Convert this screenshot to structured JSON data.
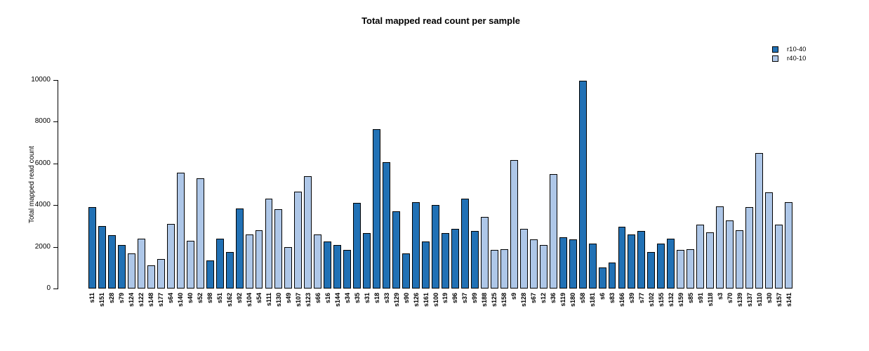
{
  "title": "Total mapped read count per sample",
  "legend": {
    "items": [
      {
        "label": "r10-40",
        "color": "#2171b5"
      },
      {
        "label": "r40-10",
        "color": "#aec7e8"
      }
    ]
  },
  "chart_data": {
    "type": "bar",
    "title": "Total mapped read count per sample",
    "xlabel": "",
    "ylabel": "Total mapped read count",
    "ylim": [
      0,
      10000
    ],
    "yticks": [
      0,
      2000,
      4000,
      6000,
      8000,
      10000
    ],
    "grid": false,
    "legend_position": "top-right",
    "bar_border_color": "#000000",
    "series_colors": {
      "r10-40": "#2171b5",
      "r40-10": "#aec7e8"
    },
    "samples": [
      {
        "id": "s11",
        "value": 3900,
        "series": "r10-40"
      },
      {
        "id": "s151",
        "value": 3000,
        "series": "r10-40"
      },
      {
        "id": "s28",
        "value": 2550,
        "series": "r10-40"
      },
      {
        "id": "s79",
        "value": 2100,
        "series": "r10-40"
      },
      {
        "id": "s124",
        "value": 1700,
        "series": "r40-10"
      },
      {
        "id": "s122",
        "value": 2400,
        "series": "r40-10"
      },
      {
        "id": "s148",
        "value": 1100,
        "series": "r40-10"
      },
      {
        "id": "s177",
        "value": 1400,
        "series": "r40-10"
      },
      {
        "id": "s64",
        "value": 3100,
        "series": "r40-10"
      },
      {
        "id": "s140",
        "value": 5550,
        "series": "r40-10"
      },
      {
        "id": "s40",
        "value": 2300,
        "series": "r40-10"
      },
      {
        "id": "s52",
        "value": 5300,
        "series": "r40-10"
      },
      {
        "id": "s98",
        "value": 1350,
        "series": "r10-40"
      },
      {
        "id": "s51",
        "value": 2400,
        "series": "r10-40"
      },
      {
        "id": "s162",
        "value": 1750,
        "series": "r10-40"
      },
      {
        "id": "s92",
        "value": 3850,
        "series": "r10-40"
      },
      {
        "id": "s104",
        "value": 2600,
        "series": "r40-10"
      },
      {
        "id": "s54",
        "value": 2800,
        "series": "r40-10"
      },
      {
        "id": "s111",
        "value": 4300,
        "series": "r40-10"
      },
      {
        "id": "s130",
        "value": 3800,
        "series": "r40-10"
      },
      {
        "id": "s49",
        "value": 2000,
        "series": "r40-10"
      },
      {
        "id": "s107",
        "value": 4650,
        "series": "r40-10"
      },
      {
        "id": "s123",
        "value": 5400,
        "series": "r40-10"
      },
      {
        "id": "s66",
        "value": 2600,
        "series": "r40-10"
      },
      {
        "id": "s16",
        "value": 2250,
        "series": "r10-40"
      },
      {
        "id": "s144",
        "value": 2100,
        "series": "r10-40"
      },
      {
        "id": "s34",
        "value": 1850,
        "series": "r10-40"
      },
      {
        "id": "s35",
        "value": 4100,
        "series": "r10-40"
      },
      {
        "id": "s31",
        "value": 2650,
        "series": "r10-40"
      },
      {
        "id": "s18",
        "value": 7650,
        "series": "r10-40"
      },
      {
        "id": "s33",
        "value": 6050,
        "series": "r10-40"
      },
      {
        "id": "s129",
        "value": 3700,
        "series": "r10-40"
      },
      {
        "id": "s90",
        "value": 1700,
        "series": "r10-40"
      },
      {
        "id": "s126",
        "value": 4150,
        "series": "r10-40"
      },
      {
        "id": "s161",
        "value": 2250,
        "series": "r10-40"
      },
      {
        "id": "s100",
        "value": 4000,
        "series": "r10-40"
      },
      {
        "id": "s19",
        "value": 2650,
        "series": "r10-40"
      },
      {
        "id": "s96",
        "value": 2850,
        "series": "r10-40"
      },
      {
        "id": "s37",
        "value": 4300,
        "series": "r10-40"
      },
      {
        "id": "s99",
        "value": 2750,
        "series": "r10-40"
      },
      {
        "id": "s188",
        "value": 3450,
        "series": "r40-10"
      },
      {
        "id": "s125",
        "value": 1850,
        "series": "r40-10"
      },
      {
        "id": "s158",
        "value": 1900,
        "series": "r40-10"
      },
      {
        "id": "s9",
        "value": 6150,
        "series": "r40-10"
      },
      {
        "id": "s128",
        "value": 2850,
        "series": "r40-10"
      },
      {
        "id": "s67",
        "value": 2350,
        "series": "r40-10"
      },
      {
        "id": "s12",
        "value": 2100,
        "series": "r40-10"
      },
      {
        "id": "s36",
        "value": 5500,
        "series": "r40-10"
      },
      {
        "id": "s119",
        "value": 2450,
        "series": "r10-40"
      },
      {
        "id": "s180",
        "value": 2350,
        "series": "r10-40"
      },
      {
        "id": "s58",
        "value": 9950,
        "series": "r10-40"
      },
      {
        "id": "s181",
        "value": 2150,
        "series": "r10-40"
      },
      {
        "id": "s6",
        "value": 1000,
        "series": "r10-40"
      },
      {
        "id": "s83",
        "value": 1250,
        "series": "r10-40"
      },
      {
        "id": "s166",
        "value": 2950,
        "series": "r10-40"
      },
      {
        "id": "s39",
        "value": 2600,
        "series": "r10-40"
      },
      {
        "id": "s77",
        "value": 2750,
        "series": "r10-40"
      },
      {
        "id": "s102",
        "value": 1750,
        "series": "r10-40"
      },
      {
        "id": "s155",
        "value": 2150,
        "series": "r10-40"
      },
      {
        "id": "s132",
        "value": 2400,
        "series": "r10-40"
      },
      {
        "id": "s159",
        "value": 1850,
        "series": "r40-10"
      },
      {
        "id": "s85",
        "value": 1900,
        "series": "r40-10"
      },
      {
        "id": "s91",
        "value": 3050,
        "series": "r40-10"
      },
      {
        "id": "s118",
        "value": 2700,
        "series": "r40-10"
      },
      {
        "id": "s3",
        "value": 3950,
        "series": "r40-10"
      },
      {
        "id": "s70",
        "value": 3250,
        "series": "r40-10"
      },
      {
        "id": "s139",
        "value": 2800,
        "series": "r40-10"
      },
      {
        "id": "s137",
        "value": 3900,
        "series": "r40-10"
      },
      {
        "id": "s110",
        "value": 6500,
        "series": "r40-10"
      },
      {
        "id": "s30",
        "value": 4600,
        "series": "r40-10"
      },
      {
        "id": "s157",
        "value": 3050,
        "series": "r40-10"
      },
      {
        "id": "s141",
        "value": 4150,
        "series": "r40-10"
      }
    ]
  }
}
